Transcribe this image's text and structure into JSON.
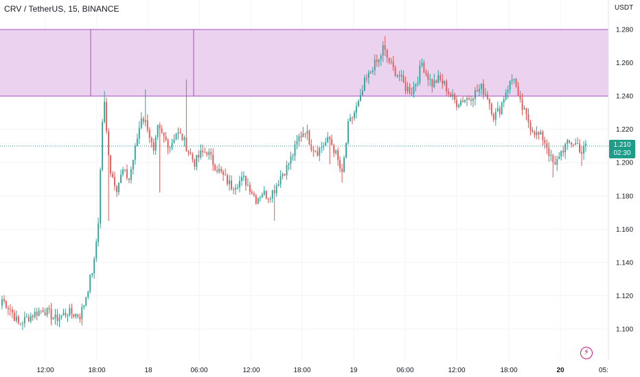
{
  "header": {
    "title": "CRV / TetherUS, 15, BINANCE",
    "unit": "USDT"
  },
  "last_price": {
    "value": "1.210",
    "countdown": "02:30"
  },
  "colors": {
    "up": "#26a69a",
    "down": "#ef5350",
    "zone_fill": "#ebd3f0",
    "zone_border": "#a64dbf",
    "grid": "#f0f3fa",
    "price_line": "#1e9c8a",
    "flash_icon": "#c2187a"
  },
  "icons": {
    "flash": "lightning-icon"
  },
  "chart_data": {
    "type": "candlestick",
    "title": "CRV / TetherUS, 15, BINANCE",
    "xlabel": "",
    "ylabel": "USDT",
    "ylim": [
      1.08,
      1.3
    ],
    "y_ticks": [
      "1.280",
      "1.260",
      "1.240",
      "1.220",
      "1.200",
      "1.180",
      "1.160",
      "1.140",
      "1.120",
      "1.100"
    ],
    "x_ticks": [
      "12:00",
      "18:00",
      "18",
      "06:00",
      "12:00",
      "18:00",
      "19",
      "06:00",
      "12:00",
      "18:00",
      "20",
      "05:"
    ],
    "grid": true,
    "zone": {
      "top": 1.28,
      "bottom": 1.24
    },
    "last_price": 1.21,
    "anchors": [
      [
        0,
        1.118
      ],
      [
        4,
        1.112
      ],
      [
        8,
        1.103
      ],
      [
        14,
        1.108
      ],
      [
        20,
        1.112
      ],
      [
        26,
        1.106
      ],
      [
        32,
        1.11
      ],
      [
        38,
        1.108
      ],
      [
        40,
        1.115
      ],
      [
        42,
        1.125
      ],
      [
        45,
        1.14
      ],
      [
        47,
        1.165
      ],
      [
        49,
        1.225
      ],
      [
        50,
        1.235
      ],
      [
        51,
        1.218
      ],
      [
        53,
        1.195
      ],
      [
        56,
        1.185
      ],
      [
        59,
        1.195
      ],
      [
        62,
        1.19
      ],
      [
        65,
        1.208
      ],
      [
        68,
        1.228
      ],
      [
        71,
        1.222
      ],
      [
        74,
        1.205
      ],
      [
        76,
        1.22
      ],
      [
        79,
        1.215
      ],
      [
        82,
        1.21
      ],
      [
        85,
        1.218
      ],
      [
        88,
        1.215
      ],
      [
        91,
        1.207
      ],
      [
        94,
        1.2
      ],
      [
        97,
        1.205
      ],
      [
        100,
        1.207
      ],
      [
        103,
        1.2
      ],
      [
        106,
        1.195
      ],
      [
        109,
        1.19
      ],
      [
        112,
        1.186
      ],
      [
        115,
        1.188
      ],
      [
        118,
        1.19
      ],
      [
        121,
        1.185
      ],
      [
        124,
        1.178
      ],
      [
        127,
        1.182
      ],
      [
        130,
        1.18
      ],
      [
        133,
        1.184
      ],
      [
        136,
        1.192
      ],
      [
        139,
        1.197
      ],
      [
        142,
        1.205
      ],
      [
        145,
        1.215
      ],
      [
        148,
        1.22
      ],
      [
        151,
        1.21
      ],
      [
        154,
        1.207
      ],
      [
        157,
        1.211
      ],
      [
        160,
        1.214
      ],
      [
        163,
        1.205
      ],
      [
        166,
        1.192
      ],
      [
        169,
        1.222
      ],
      [
        172,
        1.23
      ],
      [
        175,
        1.238
      ],
      [
        177,
        1.248
      ],
      [
        179,
        1.252
      ],
      [
        181,
        1.258
      ],
      [
        184,
        1.261
      ],
      [
        186,
        1.269
      ],
      [
        188,
        1.263
      ],
      [
        191,
        1.256
      ],
      [
        194,
        1.252
      ],
      [
        197,
        1.245
      ],
      [
        200,
        1.243
      ],
      [
        203,
        1.251
      ],
      [
        205,
        1.26
      ],
      [
        207,
        1.254
      ],
      [
        210,
        1.247
      ],
      [
        213,
        1.25
      ],
      [
        216,
        1.247
      ],
      [
        219,
        1.24
      ],
      [
        222,
        1.236
      ],
      [
        225,
        1.238
      ],
      [
        228,
        1.239
      ],
      [
        231,
        1.242
      ],
      [
        234,
        1.245
      ],
      [
        237,
        1.24
      ],
      [
        240,
        1.228
      ],
      [
        243,
        1.232
      ],
      [
        246,
        1.243
      ],
      [
        249,
        1.25
      ],
      [
        250,
        1.252
      ],
      [
        252,
        1.238
      ],
      [
        255,
        1.23
      ],
      [
        258,
        1.222
      ],
      [
        261,
        1.217
      ],
      [
        264,
        1.215
      ],
      [
        266,
        1.21
      ],
      [
        268,
        1.202
      ],
      [
        270,
        1.197
      ],
      [
        272,
        1.205
      ],
      [
        275,
        1.21
      ],
      [
        278,
        1.212
      ],
      [
        281,
        1.211
      ],
      [
        283,
        1.206
      ],
      [
        285,
        1.21
      ]
    ],
    "candle_count": 286,
    "candle_spacing_minutes": 15
  }
}
